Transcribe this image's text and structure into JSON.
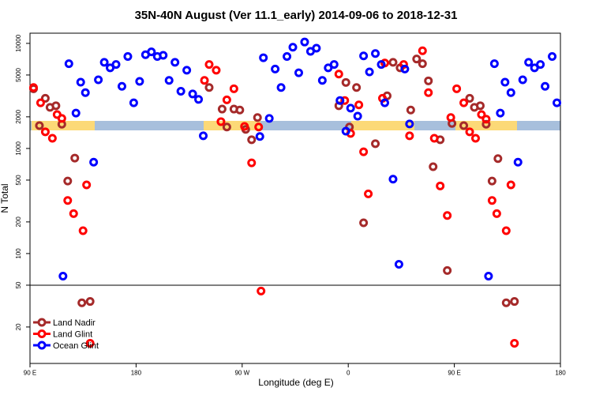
{
  "chart_data": {
    "type": "scatter",
    "title": "35N-40N August (Ver 11.1_early)   2014-09-06 to 2018-12-31",
    "xlabel": "Longitude (deg E)",
    "ylabel": "N Total",
    "log_y": true,
    "divider": 50,
    "legend": "lower left",
    "xlim": [
      90,
      540
    ],
    "ylim": [
      9,
      12500
    ],
    "xticks": [
      {
        "value": 90,
        "label": "90 E"
      },
      180,
      {
        "value": 270,
        "label": "90 W"
      },
      {
        "value": 360,
        "label": "0"
      },
      {
        "value": 450,
        "label": "90 E"
      },
      {
        "value": 540,
        "label": "180"
      }
    ],
    "yticks": [
      20,
      50,
      100,
      200,
      500,
      1000,
      2000,
      5000,
      10000
    ],
    "series": [
      {
        "name": "Land Nadir",
        "color": "#a52a2a",
        "x": [
          93,
          98,
          103,
          107,
          112,
          117,
          122,
          128,
          134,
          141,
          242,
          253,
          257,
          263,
          268,
          273,
          278,
          283,
          352,
          358,
          361,
          367,
          383,
          373,
          393,
          398,
          404,
          413,
          418,
          423,
          428,
          432,
          438,
          444,
          448,
          458,
          463,
          467,
          472,
          477,
          482,
          487,
          494,
          501
        ],
        "values": [
          3700,
          1650,
          3000,
          2460,
          2550,
          1700,
          490,
          810,
          34,
          35,
          3800,
          2370,
          1600,
          2370,
          2320,
          1520,
          1210,
          1970,
          2550,
          4250,
          1600,
          3800,
          1110,
          196,
          3170,
          6600,
          5850,
          2320,
          7100,
          6400,
          4400,
          670,
          1210,
          69,
          1730,
          1650,
          3000,
          2460,
          2550,
          1700,
          490,
          800,
          34,
          35
        ]
      },
      {
        "name": "Land Glint",
        "color": "#ff0000",
        "x": [
          93,
          99,
          103,
          109,
          113,
          117,
          122,
          127,
          135,
          138,
          141,
          238,
          242,
          248,
          252,
          257,
          263,
          272,
          278,
          284,
          286,
          352,
          357,
          362,
          369,
          373,
          377,
          389,
          391,
          407,
          412,
          423,
          428,
          433,
          438,
          444,
          447,
          452,
          458,
          463,
          468,
          473,
          477,
          482,
          486,
          494,
          498,
          501
        ],
        "values": [
          3800,
          2720,
          1440,
          1250,
          2100,
          1930,
          320,
          240,
          165,
          450,
          14,
          4440,
          6300,
          5550,
          1800,
          2900,
          3700,
          1620,
          730,
          1600,
          44,
          5100,
          2860,
          1390,
          2600,
          930,
          370,
          3000,
          6500,
          6300,
          1320,
          8500,
          3400,
          1250,
          440,
          230,
          1970,
          3700,
          2720,
          1440,
          1250,
          2100,
          1900,
          320,
          240,
          165,
          450,
          14
        ]
      },
      {
        "name": "Ocean Glint",
        "color": "#0000ff",
        "x": [
          118,
          123,
          129,
          133,
          137,
          144,
          148,
          153,
          158,
          163,
          168,
          173,
          178,
          183,
          188,
          193,
          198,
          203,
          208,
          213,
          218,
          223,
          228,
          233,
          237,
          285,
          288,
          293,
          298,
          303,
          308,
          313,
          318,
          323,
          328,
          333,
          338,
          343,
          348,
          353,
          358,
          362,
          368,
          373,
          378,
          383,
          388,
          391,
          398,
          403,
          408,
          412,
          479,
          484,
          489,
          493,
          498,
          504,
          508,
          513,
          518,
          523,
          527,
          533,
          537
        ],
        "values": [
          61,
          6400,
          2170,
          4270,
          3400,
          740,
          4500,
          6600,
          5850,
          6300,
          3900,
          7500,
          2720,
          4350,
          7800,
          8300,
          7500,
          7700,
          4440,
          6600,
          3500,
          5550,
          3300,
          2930,
          1320,
          1300,
          7300,
          1930,
          5700,
          3800,
          7500,
          9200,
          5250,
          10300,
          8400,
          9000,
          4440,
          5850,
          6300,
          2860,
          1460,
          2420,
          2030,
          7600,
          5350,
          8000,
          6300,
          2720,
          510,
          79,
          5700,
          1710,
          61,
          6400,
          2170,
          4270,
          3400,
          740,
          4500,
          6600,
          5850,
          6300,
          3900,
          7500,
          2720
        ]
      }
    ]
  }
}
